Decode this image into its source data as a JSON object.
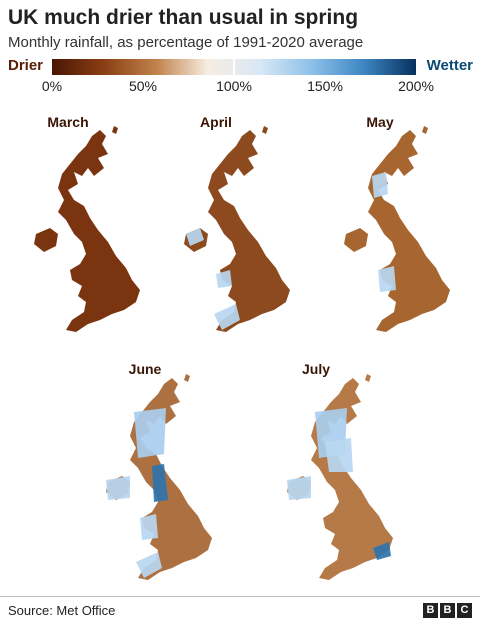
{
  "title": "UK much drier than usual in spring",
  "subtitle": "Monthly rainfall, as percentage of 1991-2020 average",
  "legend": {
    "left_label": "Drier",
    "right_label": "Wetter",
    "ticks": [
      "0%",
      "50%",
      "100%",
      "150%",
      "200%"
    ],
    "tick_values": [
      0,
      50,
      100,
      150,
      200
    ],
    "colors": [
      "#4a1604",
      "#8a3e14",
      "#c0824a",
      "#f7ede2",
      "#d8e8f6",
      "#8cc0e8",
      "#3d86c2",
      "#06305e"
    ]
  },
  "maps": [
    {
      "label": "March",
      "fill": "#7b3410",
      "wet": []
    },
    {
      "label": "April",
      "fill": "#8c4a1e",
      "wet": [
        "south-west",
        "west-wales",
        "north-ireland"
      ]
    },
    {
      "label": "May",
      "fill": "#a7652f",
      "wet": [
        "scotland-west",
        "wales"
      ]
    },
    {
      "label": "June",
      "fill": "#ad7040",
      "wet": [
        "scotland",
        "north-west",
        "northern-ireland",
        "wales",
        "south-west"
      ]
    },
    {
      "label": "July",
      "fill": "#b67a48",
      "wet": [
        "scotland",
        "northern-ireland",
        "north",
        "south-east"
      ]
    }
  ],
  "source": "Source: Met Office",
  "brand": [
    "B",
    "B",
    "C"
  ]
}
